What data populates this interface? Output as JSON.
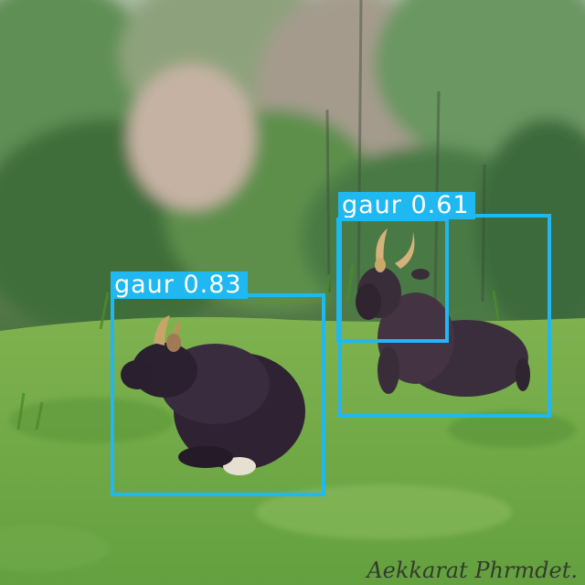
{
  "scene": {
    "subject": "gaur",
    "colors": {
      "box": "#1fb8f0",
      "label_text": "#ffffff",
      "grass": "#6fa446",
      "forest": "#4f7a45"
    }
  },
  "detections": [
    {
      "label": "gaur",
      "confidence": "0.83",
      "text": "gaur 0.83"
    },
    {
      "label": "gaur",
      "confidence": "0.61",
      "text": "gaur 0.61"
    },
    {
      "label": "gaur",
      "confidence": "",
      "text": ""
    }
  ],
  "watermark": {
    "text": "Aekkarat Phrmdet."
  }
}
